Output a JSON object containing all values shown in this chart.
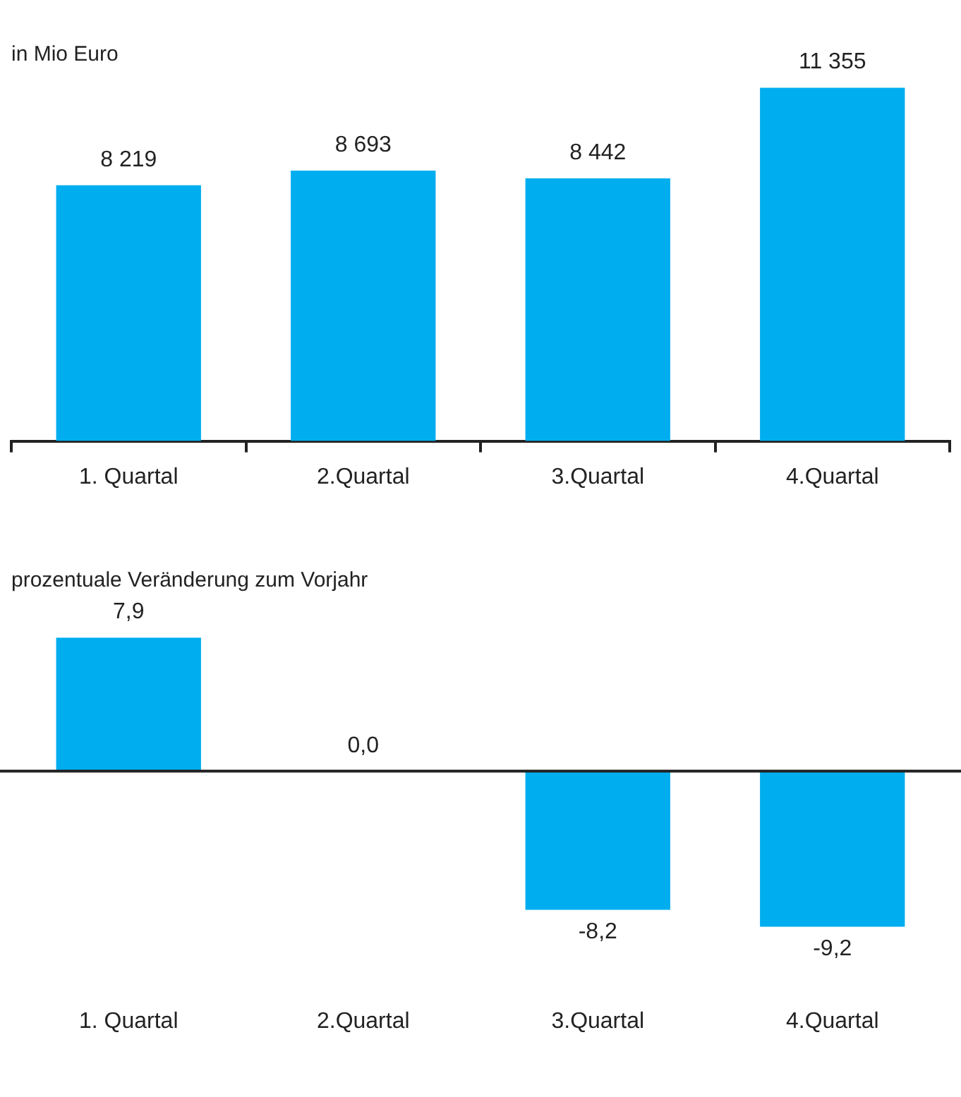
{
  "chart_data": [
    {
      "type": "bar",
      "title": "in Mio Euro",
      "categories": [
        "1. Quartal",
        "2.Quartal",
        "3.Quartal",
        "4.Quartal"
      ],
      "values": [
        8219,
        8693,
        8442,
        11355
      ],
      "value_labels": [
        "8 219",
        "8 693",
        "8 442",
        "11 355"
      ],
      "color": "#00aeef"
    },
    {
      "type": "bar",
      "title": "prozentuale Veränderung zum Vorjahr",
      "categories": [
        "1. Quartal",
        "2.Quartal",
        "3.Quartal",
        "4.Quartal"
      ],
      "values": [
        7.9,
        0.0,
        -8.2,
        -9.2
      ],
      "value_labels": [
        "7,9",
        "0,0",
        "-8,2",
        "-9,2"
      ],
      "color": "#00aeef",
      "ref_lines": [
        {
          "axis": "y",
          "value": 0
        }
      ]
    }
  ]
}
